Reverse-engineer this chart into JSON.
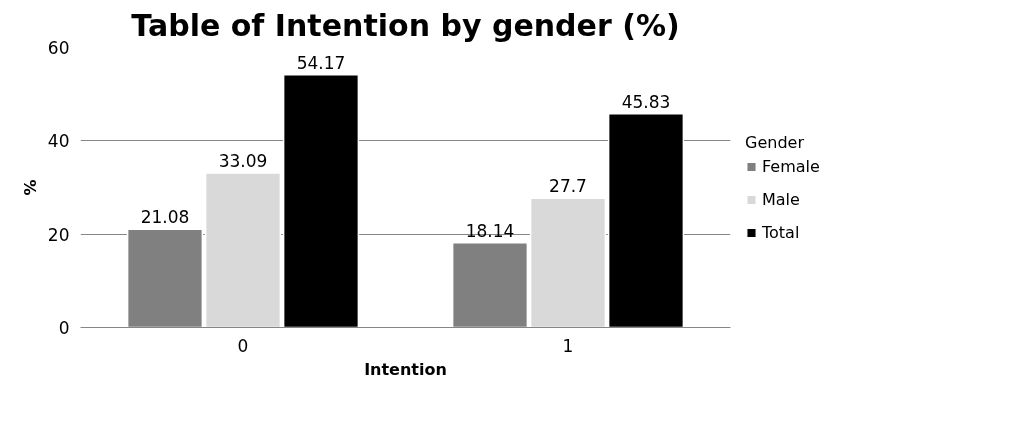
{
  "chart_data": {
    "type": "bar",
    "title": "Table of Intention by gender (%)",
    "xlabel": "Intention",
    "ylabel": "%",
    "legend_title": "Gender",
    "categories": [
      "0",
      "1"
    ],
    "series": [
      {
        "name": "Female",
        "color": "#808080",
        "values": [
          21.08,
          18.14
        ]
      },
      {
        "name": "Male",
        "color": "#d9d9d9",
        "values": [
          33.09,
          27.7
        ]
      },
      {
        "name": "Total",
        "color": "#000000",
        "values": [
          54.17,
          45.83
        ]
      }
    ],
    "ylim": [
      0,
      60
    ],
    "yticks": [
      0,
      20,
      40,
      60
    ],
    "grid": "y",
    "legend": "right",
    "data_labels": true
  }
}
